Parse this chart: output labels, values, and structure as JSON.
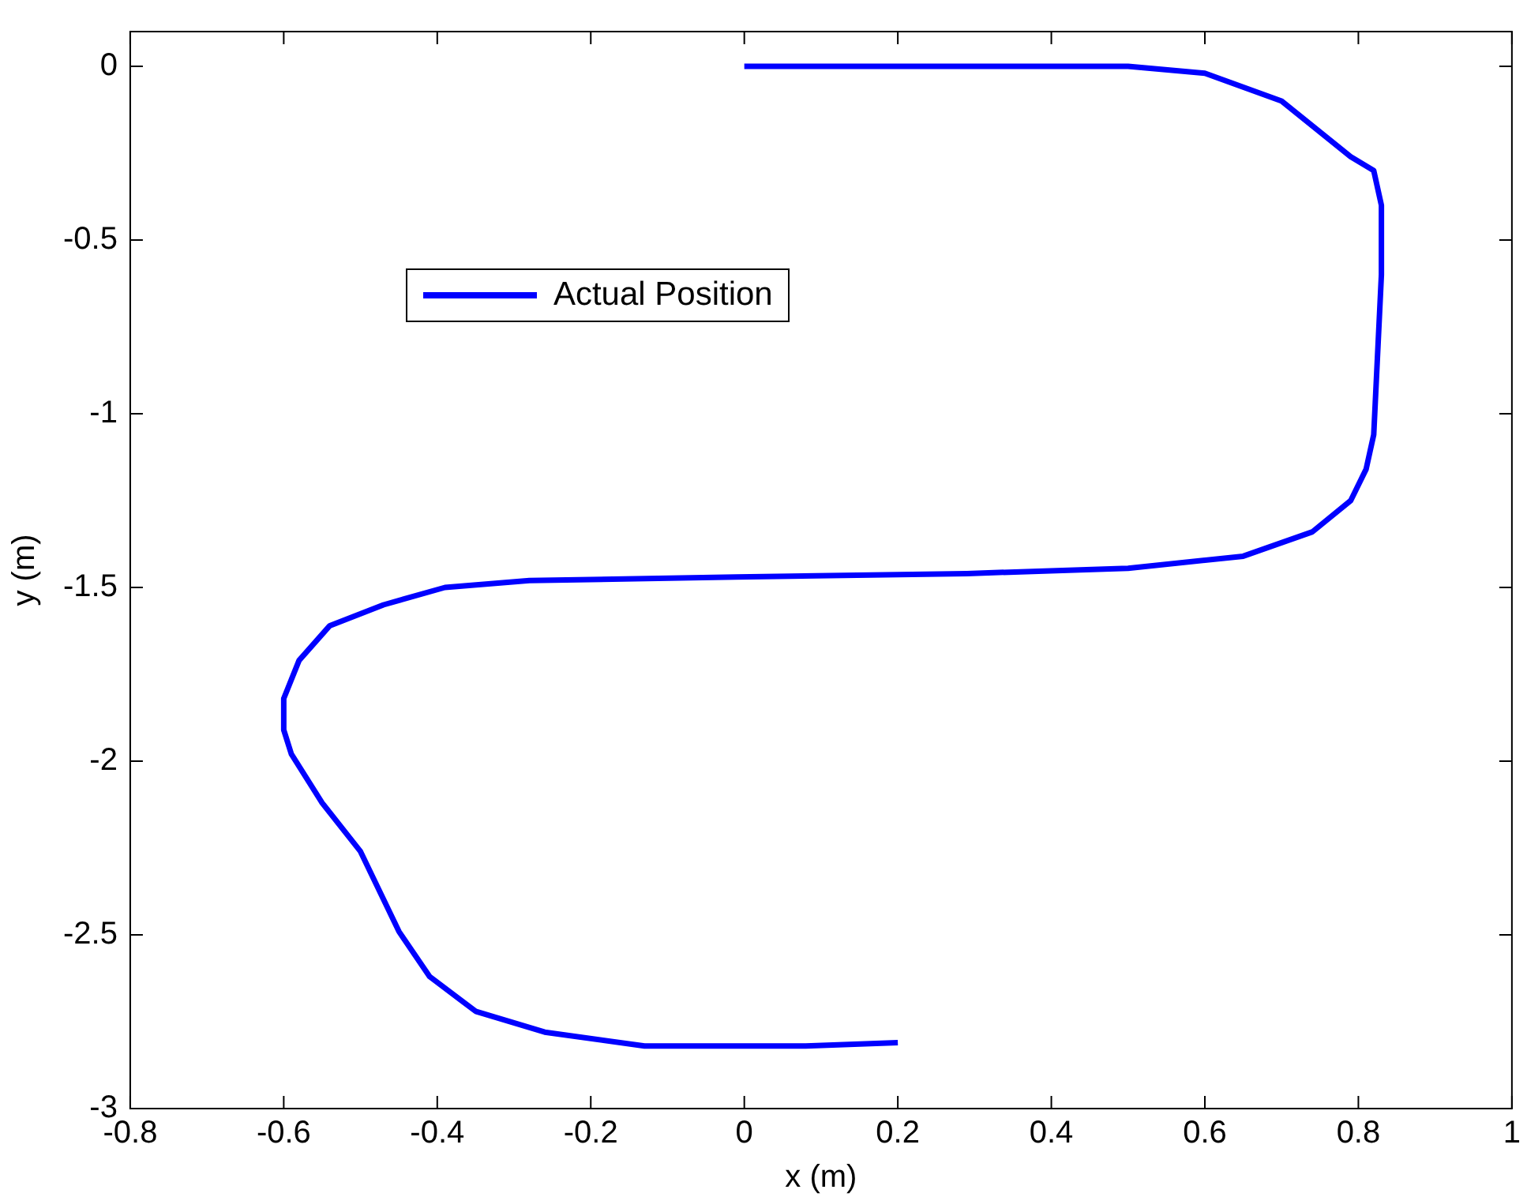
{
  "chart_data": {
    "type": "line",
    "xlabel": "x (m)",
    "ylabel": "y (m)",
    "series": [
      {
        "name": "Actual Position",
        "color": "#0000ff",
        "x": [
          0,
          0.5,
          0.6,
          0.7,
          0.79,
          0.82,
          0.83,
          0.83,
          0.82,
          0.81,
          0.79,
          0.74,
          0.65,
          0.5,
          0.29,
          -0.01,
          -0.28,
          -0.39,
          -0.47,
          -0.54,
          -0.58,
          -0.6,
          -0.6,
          -0.59,
          -0.55,
          -0.5,
          -0.45,
          -0.41,
          -0.35,
          -0.26,
          -0.13,
          0.08,
          0.2
        ],
        "values": [
          0,
          0,
          -0.02,
          -0.1,
          -0.26,
          -0.3,
          -0.4,
          -0.6,
          -1.06,
          -1.16,
          -1.25,
          -1.34,
          -1.41,
          -1.445,
          -1.46,
          -1.47,
          -1.48,
          -1.5,
          -1.55,
          -1.61,
          -1.71,
          -1.82,
          -1.91,
          -1.98,
          -2.12,
          -2.26,
          -2.49,
          -2.62,
          -2.72,
          -2.78,
          -2.82,
          -2.82,
          -2.81
        ]
      }
    ],
    "xlim": [
      -0.8,
      1
    ],
    "xticks": [
      -0.8,
      -0.6,
      -0.4,
      -0.2,
      0,
      0.2,
      0.4,
      0.6,
      0.8,
      1
    ],
    "ylim": [
      -3,
      0.1
    ],
    "yticks": [
      -3,
      -2.5,
      -2,
      -1.5,
      -1,
      -0.5,
      0
    ],
    "grid": false,
    "legend": "top left",
    "marker": "none",
    "line_style": "solid"
  }
}
